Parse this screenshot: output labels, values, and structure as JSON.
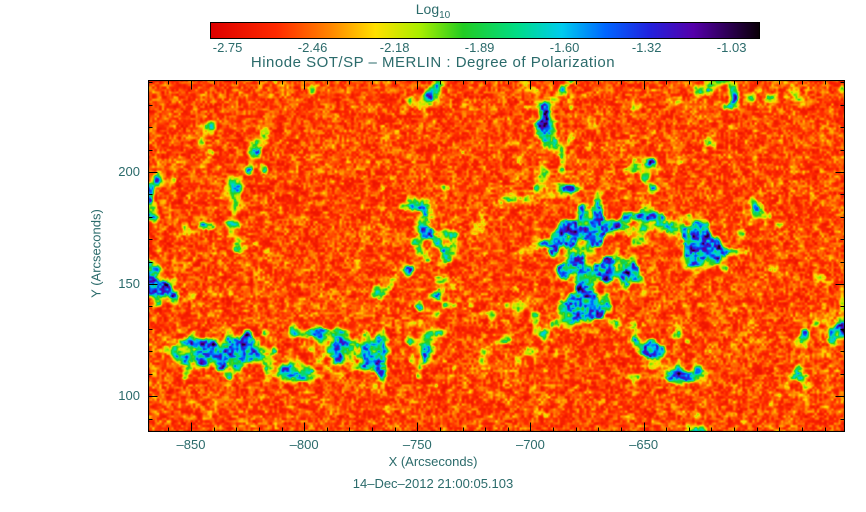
{
  "chart_data": {
    "type": "heatmap",
    "title": "Hinode SOT/SP – MERLIN : Degree of Polarization",
    "xlabel": "X (Arcseconds)",
    "ylabel": "Y (Arcseconds)",
    "timestamp": "14–Dec–2012 21:00:05.103",
    "xlim": [
      -869,
      -561
    ],
    "ylim": [
      84,
      241
    ],
    "x_major_ticks": [
      -850,
      -800,
      -750,
      -700,
      -650
    ],
    "x_minor_step": 10,
    "y_major_ticks": [
      100,
      150,
      200
    ],
    "y_minor_step": 10,
    "grid": false,
    "text_color": "#2b6b6b",
    "frame_color": "#000000",
    "colorbar": {
      "label_main": "Log",
      "label_sub": "10",
      "tick_labels": [
        "-2.75",
        "-2.46",
        "-2.18",
        "-1.89",
        "-1.60",
        "-1.32",
        "-1.03"
      ],
      "tick_values": [
        -2.75,
        -2.46,
        -2.18,
        -1.89,
        -1.6,
        -1.32,
        -1.03
      ],
      "range": [
        -2.81,
        -0.94
      ],
      "orientation": "horizontal",
      "position": "top"
    },
    "value_description": "log10 degree of polarization: quiet-Sun background near -2.6 (red/orange speckle) with magnetic network patches reaching about -1.1 (cyan/blue), rare saturation toward black",
    "colormap_stops": [
      [
        0.0,
        "#dd0000"
      ],
      [
        0.12,
        "#ff2a00"
      ],
      [
        0.22,
        "#ff8800"
      ],
      [
        0.3,
        "#ffe000"
      ],
      [
        0.38,
        "#aaee00"
      ],
      [
        0.46,
        "#22cc22"
      ],
      [
        0.56,
        "#00dd88"
      ],
      [
        0.64,
        "#00ccee"
      ],
      [
        0.72,
        "#0066ff"
      ],
      [
        0.8,
        "#2222dd"
      ],
      [
        0.88,
        "#5500aa"
      ],
      [
        1.0,
        "#0a0008"
      ]
    ],
    "synthesis": {
      "seed": 7,
      "fine_scales": [
        2.4,
        5.1
      ],
      "blob_scales": [
        55,
        21,
        9
      ],
      "blob_threshold": 0.6
    }
  }
}
